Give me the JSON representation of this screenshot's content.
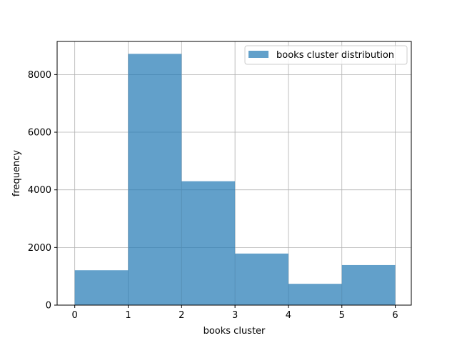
{
  "chart_data": {
    "type": "bar",
    "subtype": "histogram",
    "bin_edges": [
      0,
      1,
      2,
      3,
      4,
      5,
      6
    ],
    "values": [
      1210,
      8720,
      4300,
      1790,
      740,
      1390
    ],
    "series": [
      {
        "name": "books cluster distribution",
        "values": [
          1210,
          8720,
          4300,
          1790,
          740,
          1390
        ]
      }
    ],
    "title": "",
    "xlabel": "books cluster",
    "ylabel": "frequency",
    "xlim": [
      -0.33,
      6.3
    ],
    "ylim": [
      0,
      9150
    ],
    "xticks": [
      0,
      1,
      2,
      3,
      4,
      5,
      6
    ],
    "yticks": [
      0,
      2000,
      4000,
      6000,
      8000
    ],
    "grid": true,
    "legend_position": "upper right",
    "bar_color": "#1f77b4",
    "bar_alpha": 0.7,
    "grid_color": "#b0b0b0"
  }
}
